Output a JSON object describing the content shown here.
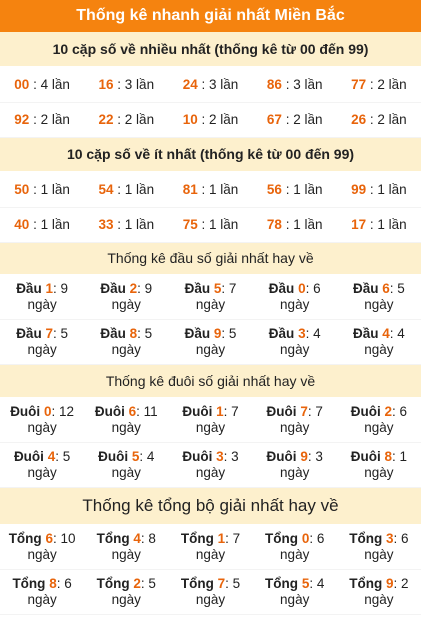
{
  "title": "Thống kê nhanh giải nhất Miền Bắc",
  "colors": {
    "accent": "#f5830f",
    "section_bg": "#fdf0cd",
    "number": "#e8640b"
  },
  "most": {
    "header": "10 cặp số về nhiều nhất (thống kê từ 00 đến 99)",
    "rows": [
      [
        {
          "num": "00",
          "text": ": 4 lần"
        },
        {
          "num": "16",
          "text": ": 3 lần"
        },
        {
          "num": "24",
          "text": ": 3 lần"
        },
        {
          "num": "86",
          "text": ": 3 lần"
        },
        {
          "num": "77",
          "text": ": 2 lần"
        }
      ],
      [
        {
          "num": "92",
          "text": ": 2 lần"
        },
        {
          "num": "22",
          "text": ": 2 lần"
        },
        {
          "num": "10",
          "text": ": 2 lần"
        },
        {
          "num": "67",
          "text": ": 2 lần"
        },
        {
          "num": "26",
          "text": ": 2 lần"
        }
      ]
    ]
  },
  "least": {
    "header": "10 cặp số về ít nhất (thống kê từ 00 đến 99)",
    "rows": [
      [
        {
          "num": "50",
          "text": ": 1 lần"
        },
        {
          "num": "54",
          "text": ": 1 lần"
        },
        {
          "num": "81",
          "text": ": 1 lần"
        },
        {
          "num": "56",
          "text": ": 1 lần"
        },
        {
          "num": "99",
          "text": ": 1 lần"
        }
      ],
      [
        {
          "num": "40",
          "text": ": 1 lần"
        },
        {
          "num": "33",
          "text": ": 1 lần"
        },
        {
          "num": "75",
          "text": ": 1 lần"
        },
        {
          "num": "78",
          "text": ": 1 lần"
        },
        {
          "num": "17",
          "text": ": 1 lần"
        }
      ]
    ]
  },
  "dau": {
    "header": "Thống kê đầu số giải nhất hay về",
    "rows": [
      [
        {
          "label": "Đầu",
          "num": "1",
          "text": ": 9 ngày"
        },
        {
          "label": "Đầu",
          "num": "2",
          "text": ": 9 ngày"
        },
        {
          "label": "Đầu",
          "num": "5",
          "text": ": 7 ngày"
        },
        {
          "label": "Đầu",
          "num": "0",
          "text": ": 6 ngày"
        },
        {
          "label": "Đầu",
          "num": "6",
          "text": ": 5 ngày"
        }
      ],
      [
        {
          "label": "Đầu",
          "num": "7",
          "text": ": 5 ngày"
        },
        {
          "label": "Đầu",
          "num": "8",
          "text": ": 5 ngày"
        },
        {
          "label": "Đầu",
          "num": "9",
          "text": ": 5 ngày"
        },
        {
          "label": "Đầu",
          "num": "3",
          "text": ": 4 ngày"
        },
        {
          "label": "Đầu",
          "num": "4",
          "text": ": 4 ngày"
        }
      ]
    ]
  },
  "duoi": {
    "header": "Thống kê đuôi số giải nhất hay về",
    "rows": [
      [
        {
          "label": "Đuôi",
          "num": "0",
          "text": ": 12 ngày"
        },
        {
          "label": "Đuôi",
          "num": "6",
          "text": ": 11 ngày"
        },
        {
          "label": "Đuôi",
          "num": "1",
          "text": ": 7 ngày"
        },
        {
          "label": "Đuôi",
          "num": "7",
          "text": ": 7 ngày"
        },
        {
          "label": "Đuôi",
          "num": "2",
          "text": ": 6 ngày"
        }
      ],
      [
        {
          "label": "Đuôi",
          "num": "4",
          "text": ": 5 ngày"
        },
        {
          "label": "Đuôi",
          "num": "5",
          "text": ": 4 ngày"
        },
        {
          "label": "Đuôi",
          "num": "3",
          "text": ": 3 ngày"
        },
        {
          "label": "Đuôi",
          "num": "9",
          "text": ": 3 ngày"
        },
        {
          "label": "Đuôi",
          "num": "8",
          "text": ": 1 ngày"
        }
      ]
    ]
  },
  "tong": {
    "header": "Thống kê tổng bộ giải nhất hay về",
    "rows": [
      [
        {
          "label": "Tổng",
          "num": "6",
          "text": ": 10 ngày"
        },
        {
          "label": "Tổng",
          "num": "4",
          "text": ": 8 ngày"
        },
        {
          "label": "Tổng",
          "num": "1",
          "text": ": 7 ngày"
        },
        {
          "label": "Tổng",
          "num": "0",
          "text": ": 6 ngày"
        },
        {
          "label": "Tổng",
          "num": "3",
          "text": ": 6 ngày"
        }
      ],
      [
        {
          "label": "Tổng",
          "num": "8",
          "text": ": 6 ngày"
        },
        {
          "label": "Tổng",
          "num": "2",
          "text": ": 5 ngày"
        },
        {
          "label": "Tổng",
          "num": "7",
          "text": ": 5 ngày"
        },
        {
          "label": "Tổng",
          "num": "5",
          "text": ": 4 ngày"
        },
        {
          "label": "Tổng",
          "num": "9",
          "text": ": 2 ngày"
        }
      ]
    ]
  }
}
